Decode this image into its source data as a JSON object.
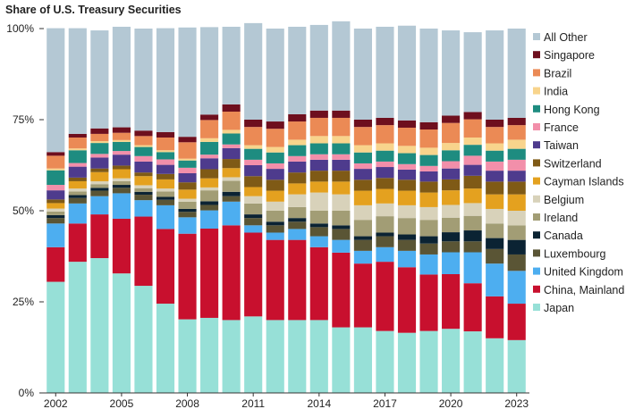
{
  "chart_data": {
    "type": "bar",
    "stacked": true,
    "title": "Share of U.S. Treasury Securities",
    "xlabel": "",
    "ylabel": "",
    "ylim": [
      0,
      100
    ],
    "y_tick_labels": [
      "0%",
      "25%",
      "50%",
      "75%",
      "100%"
    ],
    "x_tick_labels": [
      "2002",
      "2005",
      "2008",
      "2011",
      "2014",
      "2017",
      "2020",
      "2023"
    ],
    "legend_position": "right",
    "categories": [
      "2002",
      "2003",
      "2004",
      "2005",
      "2006",
      "2007",
      "2008",
      "2009",
      "2010",
      "2011",
      "2012",
      "2013",
      "2014",
      "2015",
      "2016",
      "2017",
      "2018",
      "2019",
      "2020",
      "2021",
      "2022",
      "2023"
    ],
    "series": [
      {
        "name": "Japan",
        "color": "#97E0D7",
        "values": [
          30.5,
          36,
          37,
          32.8,
          29.4,
          24.5,
          20.2,
          20.6,
          20,
          21,
          20,
          20,
          20,
          18,
          18,
          17,
          16.5,
          17,
          17.6,
          16.9,
          15,
          14.5
        ]
      },
      {
        "name": "China, Mainland",
        "color": "#C8102E",
        "values": [
          9.5,
          10.5,
          12,
          15,
          19,
          20.5,
          23.5,
          24.5,
          26,
          23,
          22,
          22,
          20,
          20.5,
          17.5,
          19,
          18,
          15.5,
          15,
          13.2,
          11.5,
          10
        ]
      },
      {
        "name": "United Kingdom",
        "color": "#4DAEF0",
        "values": [
          6.5,
          5.5,
          5,
          7,
          4.5,
          6.5,
          4.5,
          5,
          6.5,
          2,
          2,
          3,
          3,
          3.5,
          3.5,
          4,
          4.5,
          5.5,
          6,
          8.5,
          9,
          9
        ]
      },
      {
        "name": "Luxembourg",
        "color": "#5A5535",
        "values": [
          1.5,
          1.5,
          1.5,
          1.5,
          1.5,
          1.5,
          1.5,
          1.5,
          1.5,
          2,
          2,
          2,
          2.5,
          3,
          3,
          3,
          3,
          3,
          3,
          3,
          4,
          4.5
        ]
      },
      {
        "name": "Canada",
        "color": "#0B2333",
        "values": [
          0.8,
          0.8,
          0.8,
          0.8,
          0.8,
          0.8,
          0.8,
          1,
          1.2,
          1,
          1,
          1,
          1,
          1,
          1,
          1,
          1.5,
          2,
          2.5,
          3,
          3,
          4
        ]
      },
      {
        "name": "Ireland",
        "color": "#A29D75",
        "values": [
          1,
          1,
          1,
          1,
          1,
          1.5,
          2,
          3,
          3,
          3,
          3,
          3,
          3.5,
          4,
          4.5,
          4.5,
          4.5,
          4.5,
          4,
          4,
          4,
          4
        ]
      },
      {
        "name": "Belgium",
        "color": "#D8D2BA",
        "values": [
          0.8,
          0.8,
          0.8,
          0.8,
          0.8,
          0.8,
          0.8,
          0.8,
          1,
          2,
          2.5,
          3.5,
          5,
          4.5,
          4,
          3.5,
          3.5,
          3.5,
          3.5,
          3.5,
          4,
          4
        ]
      },
      {
        "name": "Cayman Islands",
        "color": "#E4A11F",
        "values": [
          1.5,
          2,
          2.5,
          2.5,
          2.5,
          2.5,
          2.5,
          2.5,
          2.5,
          2.5,
          3,
          3,
          3,
          3.5,
          4,
          4,
          4,
          4,
          4,
          4,
          4,
          4.5
        ]
      },
      {
        "name": "Switzerland",
        "color": "#7F5A16",
        "values": [
          1,
          1,
          1,
          1,
          1,
          1.5,
          2,
          2.5,
          2.5,
          3,
          3,
          3,
          3,
          3,
          3,
          3,
          3,
          3,
          3,
          3.5,
          3.5,
          3.5
        ]
      },
      {
        "name": "Taiwan",
        "color": "#4E3B8D",
        "values": [
          2.5,
          3,
          3,
          3,
          3,
          2.5,
          2.5,
          3,
          3,
          3,
          3,
          3,
          3,
          3,
          3,
          3,
          2.8,
          2.8,
          3,
          3,
          3,
          3
        ]
      },
      {
        "name": "France",
        "color": "#F28FAA",
        "values": [
          1.5,
          1,
          1,
          1,
          1.5,
          1.5,
          1.5,
          1,
          1,
          1.5,
          1.5,
          1.5,
          1.5,
          1.5,
          1.5,
          1.5,
          1.5,
          1.5,
          2,
          2.5,
          2.5,
          3
        ]
      },
      {
        "name": "Hong Kong",
        "color": "#1E8C80",
        "values": [
          4,
          3.5,
          3,
          2.5,
          2.5,
          2,
          2,
          3.5,
          3,
          3,
          3,
          3,
          3,
          3,
          3,
          3,
          3,
          3,
          3,
          3,
          3,
          3
        ]
      },
      {
        "name": "India",
        "color": "#F8D48C",
        "values": [
          0.5,
          0.5,
          0.5,
          0.5,
          0.5,
          0.5,
          0.5,
          1,
          1,
          1,
          1.5,
          1.5,
          2,
          2,
          2,
          2,
          2,
          2,
          2,
          2,
          2,
          2.5
        ]
      },
      {
        "name": "Brazil",
        "color": "#EB8A55",
        "values": [
          3.5,
          3,
          2,
          2,
          2.5,
          3.5,
          4.5,
          5,
          5,
          5,
          5,
          5,
          5,
          5,
          5,
          5,
          5,
          5,
          5.5,
          5,
          4.5,
          4
        ]
      },
      {
        "name": "Singapore",
        "color": "#6E0F1E",
        "values": [
          1,
          1,
          1.5,
          1.5,
          1.5,
          1.5,
          1.5,
          1.5,
          2,
          2,
          2,
          2,
          2,
          2,
          2,
          2,
          2,
          2,
          2,
          2,
          2,
          2
        ]
      },
      {
        "name": "All Other",
        "color": "#B4C8D4",
        "values": [
          34,
          29,
          26.9,
          27.6,
          28,
          28.5,
          30,
          24,
          21.3,
          26.5,
          25.5,
          24,
          23.5,
          24.5,
          25,
          25,
          26,
          25.7,
          23.4,
          21.9,
          24.5,
          24.5
        ]
      }
    ]
  }
}
